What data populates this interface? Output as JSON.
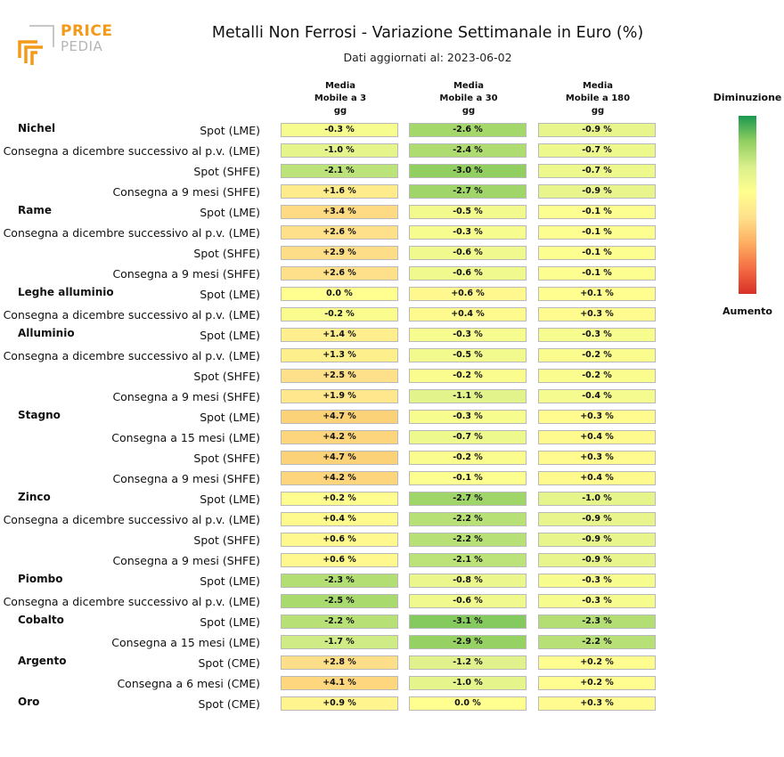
{
  "logo": {
    "word1": "PRICE",
    "word2": "PEDIA"
  },
  "header": {
    "title": "Metalli Non Ferrosi - Variazione Settimanale in Euro (%)",
    "subtitle": "Dati aggiornati al: 2023-06-02"
  },
  "columns": [
    "Media\nMobile a 3\ngg",
    "Media\nMobile a 30\ngg",
    "Media\nMobile a 180\ngg"
  ],
  "legend": {
    "top": "Diminuzione",
    "bottom": "Aumento"
  },
  "colors": {
    "max_decrease": "#1a9850",
    "neutral": "#ffff8f",
    "max_increase": "#d73027"
  },
  "chart_data": {
    "type": "heatmap",
    "title": "Metalli Non Ferrosi - Variazione Settimanale in Euro (%)",
    "columns": [
      "Media Mobile a 3 gg",
      "Media Mobile a 30 gg",
      "Media Mobile a 180 gg"
    ],
    "unit": "%",
    "groups": [
      {
        "metal": "Nichel",
        "rows": [
          {
            "label": "Spot (LME)",
            "values": [
              "-0.3 %",
              "-2.6 %",
              "-0.9 %"
            ]
          },
          {
            "label": "Consegna a dicembre successivo al p.v. (LME)",
            "values": [
              "-1.0 %",
              "-2.4 %",
              "-0.7 %"
            ]
          },
          {
            "label": "Spot (SHFE)",
            "values": [
              "-2.1 %",
              "-3.0 %",
              "-0.7 %"
            ]
          },
          {
            "label": "Consegna a 9 mesi (SHFE)",
            "values": [
              "+1.6 %",
              "-2.7 %",
              "-0.9 %"
            ]
          }
        ]
      },
      {
        "metal": "Rame",
        "rows": [
          {
            "label": "Spot (LME)",
            "values": [
              "+3.4 %",
              "-0.5 %",
              "-0.1 %"
            ]
          },
          {
            "label": "Consegna a dicembre successivo al p.v. (LME)",
            "values": [
              "+2.6 %",
              "-0.3 %",
              "-0.1 %"
            ]
          },
          {
            "label": "Spot (SHFE)",
            "values": [
              "+2.9 %",
              "-0.6 %",
              "-0.1 %"
            ]
          },
          {
            "label": "Consegna a 9 mesi (SHFE)",
            "values": [
              "+2.6 %",
              "-0.6 %",
              "-0.1 %"
            ]
          }
        ]
      },
      {
        "metal": "Leghe alluminio",
        "rows": [
          {
            "label": "Spot (LME)",
            "values": [
              "0.0 %",
              "+0.6 %",
              "+0.1 %"
            ]
          },
          {
            "label": "Consegna a dicembre successivo al p.v. (LME)",
            "values": [
              "-0.2 %",
              "+0.4 %",
              "+0.3 %"
            ]
          }
        ]
      },
      {
        "metal": "Alluminio",
        "rows": [
          {
            "label": "Spot (LME)",
            "values": [
              "+1.4 %",
              "-0.3 %",
              "-0.3 %"
            ]
          },
          {
            "label": "Consegna a dicembre successivo al p.v. (LME)",
            "values": [
              "+1.3 %",
              "-0.5 %",
              "-0.2 %"
            ]
          },
          {
            "label": "Spot (SHFE)",
            "values": [
              "+2.5 %",
              "-0.2 %",
              "-0.2 %"
            ]
          },
          {
            "label": "Consegna a 9 mesi (SHFE)",
            "values": [
              "+1.9 %",
              "-1.1 %",
              "-0.4 %"
            ]
          }
        ]
      },
      {
        "metal": "Stagno",
        "rows": [
          {
            "label": "Spot (LME)",
            "values": [
              "+4.7 %",
              "-0.3 %",
              "+0.3 %"
            ]
          },
          {
            "label": "Consegna a 15 mesi (LME)",
            "values": [
              "+4.2 %",
              "-0.7 %",
              "+0.4 %"
            ]
          },
          {
            "label": "Spot (SHFE)",
            "values": [
              "+4.7 %",
              "-0.2 %",
              "+0.3 %"
            ]
          },
          {
            "label": "Consegna a 9 mesi (SHFE)",
            "values": [
              "+4.2 %",
              "-0.1 %",
              "+0.4 %"
            ]
          }
        ]
      },
      {
        "metal": "Zinco",
        "rows": [
          {
            "label": "Spot (LME)",
            "values": [
              "+0.2 %",
              "-2.7 %",
              "-1.0 %"
            ]
          },
          {
            "label": "Consegna a dicembre successivo al p.v. (LME)",
            "values": [
              "+0.4 %",
              "-2.2 %",
              "-0.9 %"
            ]
          },
          {
            "label": "Spot (SHFE)",
            "values": [
              "+0.6 %",
              "-2.2 %",
              "-0.9 %"
            ]
          },
          {
            "label": "Consegna a 9 mesi (SHFE)",
            "values": [
              "+0.6 %",
              "-2.1 %",
              "-0.9 %"
            ]
          }
        ]
      },
      {
        "metal": "Piombo",
        "rows": [
          {
            "label": "Spot (LME)",
            "values": [
              "-2.3 %",
              "-0.8 %",
              "-0.3 %"
            ]
          },
          {
            "label": "Consegna a dicembre successivo al p.v. (LME)",
            "values": [
              "-2.5 %",
              "-0.6 %",
              "-0.3 %"
            ]
          }
        ]
      },
      {
        "metal": "Cobalto",
        "rows": [
          {
            "label": "Spot (LME)",
            "values": [
              "-2.2 %",
              "-3.1 %",
              "-2.3 %"
            ]
          },
          {
            "label": "Consegna a 15 mesi (LME)",
            "values": [
              "-1.7 %",
              "-2.9 %",
              "-2.2 %"
            ]
          }
        ]
      },
      {
        "metal": "Argento",
        "rows": [
          {
            "label": "Spot (CME)",
            "values": [
              "+2.8 %",
              "-1.2 %",
              "+0.2 %"
            ]
          },
          {
            "label": "Consegna a 6 mesi (CME)",
            "values": [
              "+4.1 %",
              "-1.0 %",
              "+0.2 %"
            ]
          }
        ]
      },
      {
        "metal": "Oro",
        "rows": [
          {
            "label": "Spot (CME)",
            "values": [
              "+0.9 %",
              "0.0 %",
              "+0.3 %"
            ]
          }
        ]
      }
    ]
  }
}
